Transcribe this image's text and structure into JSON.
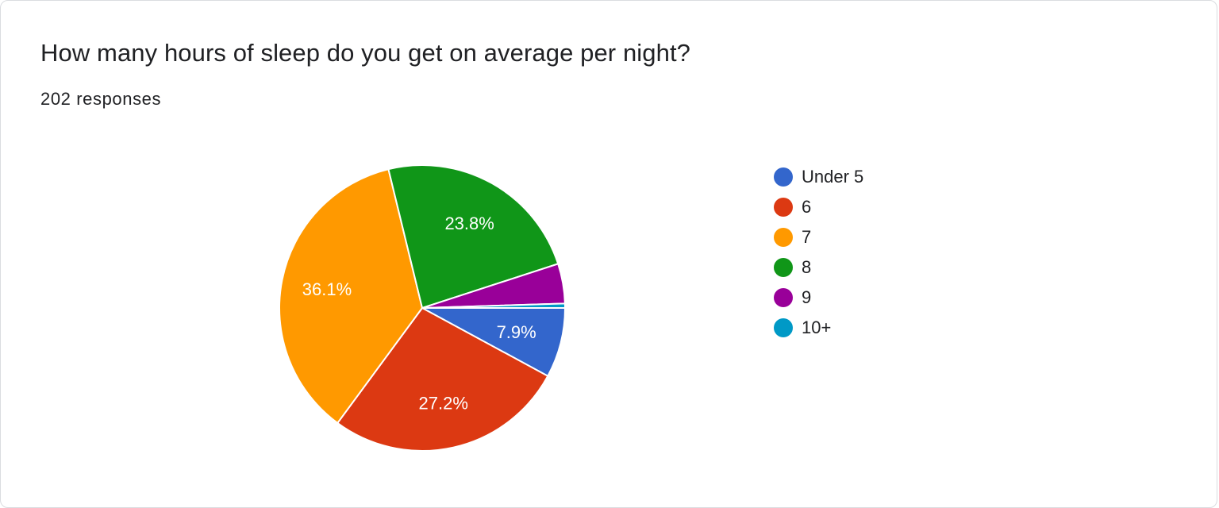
{
  "question": {
    "title": "How many hours of sleep do you get on average per night?",
    "responses": "202 responses"
  },
  "chart_data": {
    "type": "pie",
    "categories": [
      "Under 5",
      "6",
      "7",
      "8",
      "9",
      "10+"
    ],
    "values": [
      7.9,
      27.2,
      36.1,
      23.8,
      4.5,
      0.5
    ],
    "labels": [
      "7.9%",
      "27.2%",
      "36.1%",
      "23.8%",
      "",
      ""
    ],
    "colors": [
      "#3366cc",
      "#dc3912",
      "#ff9900",
      "#109618",
      "#990099",
      "#0099c6"
    ],
    "legend_position": "right"
  }
}
